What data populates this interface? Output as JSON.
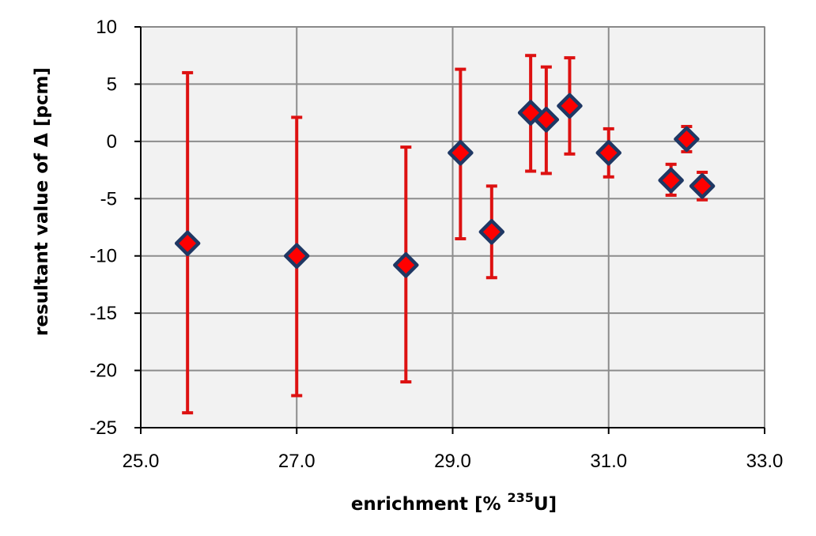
{
  "chart_data": {
    "type": "scatter",
    "title": "",
    "xlabel": "enrichment [% ",
    "xlabel_sup": "235",
    "xlabel_end": "U]",
    "ylabel": "resultant value of Δ [pcm]",
    "xlim": [
      25.0,
      33.0
    ],
    "ylim": [
      -25,
      10
    ],
    "x_ticks": [
      25.0,
      27.0,
      29.0,
      31.0,
      33.0
    ],
    "x_tick_labels": [
      "25.0",
      "27.0",
      "29.0",
      "31.0",
      "33.0"
    ],
    "y_ticks": [
      10,
      5,
      0,
      -5,
      -10,
      -15,
      -20,
      -25
    ],
    "y_tick_labels": [
      "10",
      "5",
      "0",
      "-5",
      "-10",
      "-15",
      "-20",
      "-25"
    ],
    "grid": true,
    "plot_background": "#f2f2f2",
    "marker_fill": "#ff0000",
    "marker_edge": "#1f3864",
    "errorbar_color": "#dd1111",
    "points": [
      {
        "x": 25.6,
        "y": -8.9,
        "y_low": -23.7,
        "y_high": 6.0
      },
      {
        "x": 27.0,
        "y": -10.0,
        "y_low": -22.2,
        "y_high": 2.1
      },
      {
        "x": 28.4,
        "y": -10.8,
        "y_low": -21.0,
        "y_high": -0.5
      },
      {
        "x": 29.1,
        "y": -1.0,
        "y_low": -8.5,
        "y_high": 6.3
      },
      {
        "x": 29.5,
        "y": -7.9,
        "y_low": -11.9,
        "y_high": -3.9
      },
      {
        "x": 30.0,
        "y": 2.5,
        "y_low": -2.6,
        "y_high": 7.5
      },
      {
        "x": 30.2,
        "y": 1.9,
        "y_low": -2.8,
        "y_high": 6.5
      },
      {
        "x": 30.5,
        "y": 3.1,
        "y_low": -1.1,
        "y_high": 7.3
      },
      {
        "x": 31.0,
        "y": -1.0,
        "y_low": -3.1,
        "y_high": 1.1
      },
      {
        "x": 31.8,
        "y": -3.4,
        "y_low": -4.7,
        "y_high": -2.0
      },
      {
        "x": 32.0,
        "y": 0.2,
        "y_low": -0.9,
        "y_high": 1.3
      },
      {
        "x": 32.2,
        "y": -3.9,
        "y_low": -5.1,
        "y_high": -2.7
      }
    ]
  }
}
